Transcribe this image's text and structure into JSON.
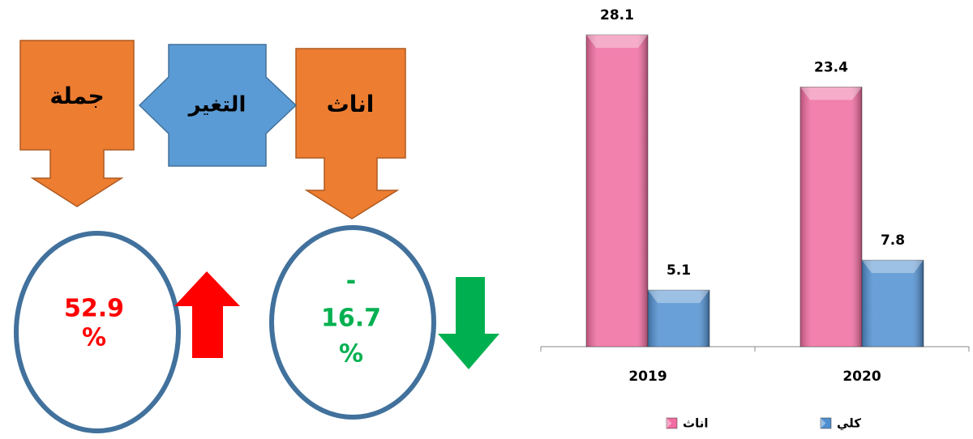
{
  "infographic": {
    "total": {
      "label": "جملة",
      "change_lines": [
        "52.9",
        "%"
      ]
    },
    "change": {
      "label": "التغير"
    },
    "females": {
      "label": "اناث",
      "change_lines": [
        "-",
        "16.7",
        "%"
      ]
    }
  },
  "chart_data": {
    "type": "bar",
    "categories": [
      "2019",
      "2020"
    ],
    "series": [
      {
        "name": "اناث",
        "color": "#f06ba0",
        "values": [
          28.1,
          23.4
        ]
      },
      {
        "name": "كلي",
        "color": "#4f8fd0",
        "values": [
          5.1,
          7.8
        ]
      }
    ],
    "ylim": [
      0,
      30
    ]
  }
}
